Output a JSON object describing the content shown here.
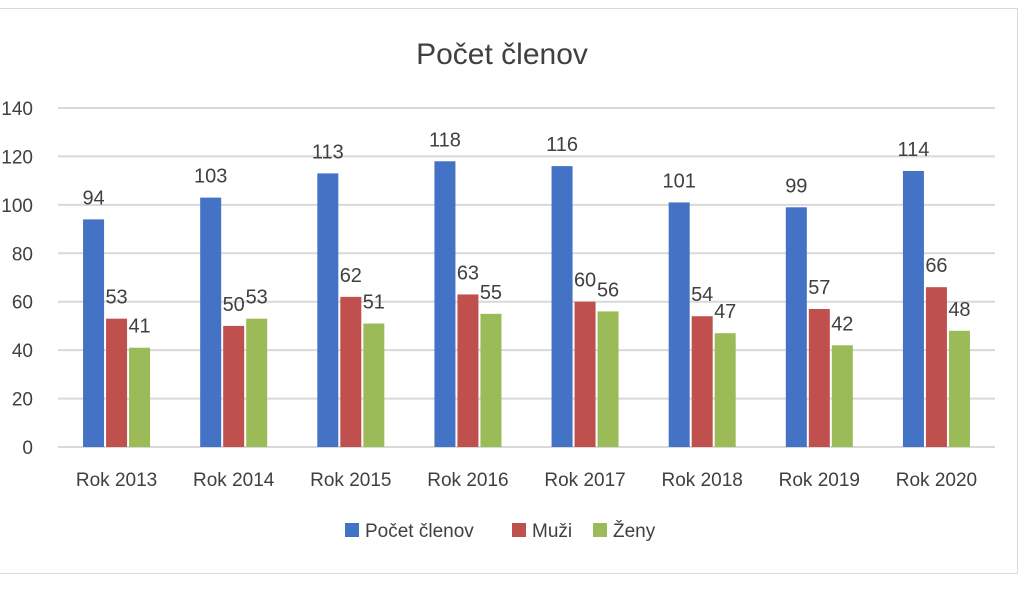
{
  "chart_data": {
    "type": "bar",
    "title": "Počet členov",
    "categories": [
      "Rok 2013",
      "Rok 2014",
      "Rok 2015",
      "Rok 2016",
      "Rok 2017",
      "Rok 2018",
      "Rok 2019",
      "Rok 2020"
    ],
    "series": [
      {
        "name": "Počet členov",
        "color": "#4472c4",
        "values": [
          94,
          103,
          113,
          118,
          116,
          101,
          99,
          114
        ]
      },
      {
        "name": "Muži",
        "color": "#c0504d",
        "values": [
          53,
          50,
          62,
          63,
          60,
          54,
          57,
          66
        ]
      },
      {
        "name": "Ženy",
        "color": "#9bbb59",
        "values": [
          41,
          53,
          51,
          55,
          56,
          47,
          42,
          48
        ]
      }
    ],
    "ylim": [
      0,
      140
    ],
    "yticks": [
      0,
      20,
      40,
      60,
      80,
      100,
      120,
      140
    ],
    "xlabel": "",
    "ylabel": "",
    "grid": true,
    "gridline_color": "#d9d9d9",
    "legend_position": "bottom",
    "data_labels": true
  }
}
